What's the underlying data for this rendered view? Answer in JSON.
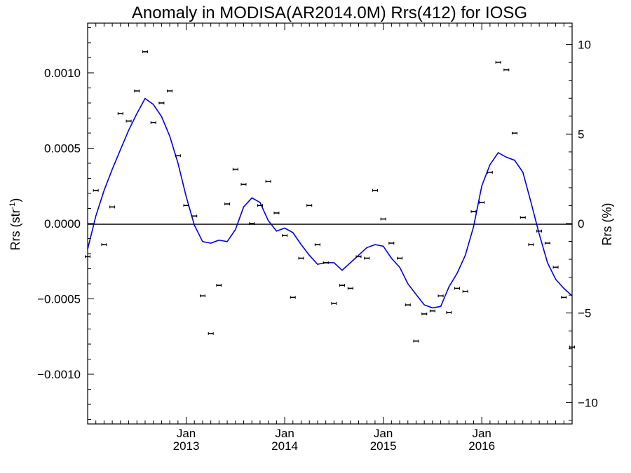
{
  "chart_data": {
    "type": "scatter",
    "title": "Anomaly in MODISA(AR2014.0M) Rrs(412) for IOSG",
    "ylabel_left": "Rrs (str",
    "ylabel_left_sup": "-1",
    "ylabel_left_end": ")",
    "ylabel_right": "Rrs (%)",
    "xlim": [
      2012.0,
      2016.9167
    ],
    "ylim_left": [
      -0.00133,
      0.00133
    ],
    "ylim_right": [
      -11.2,
      11.2
    ],
    "left_ticks": [
      {
        "value": 0.001,
        "label": "0.0010"
      },
      {
        "value": 0.0005,
        "label": "0.0005"
      },
      {
        "value": 0.0,
        "label": "0.0000"
      },
      {
        "value": -0.0005,
        "label": "−0.0005"
      },
      {
        "value": -0.001,
        "label": "−0.0010"
      }
    ],
    "right_ticks": [
      {
        "value": 10,
        "label": "10"
      },
      {
        "value": 5,
        "label": "5"
      },
      {
        "value": 0,
        "label": "0"
      },
      {
        "value": -5,
        "label": "−5"
      },
      {
        "value": -10,
        "label": "−10"
      }
    ],
    "x_ticks": [
      {
        "value": 2013.0,
        "month": "Jan",
        "year": "2013"
      },
      {
        "value": 2014.0,
        "month": "Jan",
        "year": "2014"
      },
      {
        "value": 2015.0,
        "month": "Jan",
        "year": "2015"
      },
      {
        "value": 2016.0,
        "month": "Jan",
        "year": "2016"
      }
    ],
    "zero_line": true,
    "colors": {
      "points": "#000000",
      "smooth": "#0000dd",
      "axes": "#000000"
    },
    "series": [
      {
        "kind": "monthly_anomaly_points",
        "x": [
          2012.0,
          2012.083,
          2012.167,
          2012.25,
          2012.333,
          2012.417,
          2012.5,
          2012.583,
          2012.667,
          2012.75,
          2012.833,
          2012.917,
          2013.0,
          2013.083,
          2013.167,
          2013.25,
          2013.333,
          2013.417,
          2013.5,
          2013.583,
          2013.667,
          2013.75,
          2013.833,
          2013.917,
          2014.0,
          2014.083,
          2014.167,
          2014.25,
          2014.333,
          2014.417,
          2014.5,
          2014.583,
          2014.667,
          2014.75,
          2014.833,
          2014.917,
          2015.0,
          2015.083,
          2015.167,
          2015.25,
          2015.333,
          2015.417,
          2015.5,
          2015.583,
          2015.667,
          2015.75,
          2015.833,
          2015.917,
          2016.0,
          2016.083,
          2016.167,
          2016.25,
          2016.333,
          2016.417,
          2016.5,
          2016.583,
          2016.667,
          2016.75,
          2016.833,
          2016.917
        ],
        "y": [
          -0.00022,
          0.00022,
          -0.00014,
          0.00011,
          0.00073,
          0.00068,
          0.00088,
          0.00114,
          0.00067,
          0.0008,
          0.00088,
          0.00045,
          0.00012,
          5e-05,
          -0.00048,
          -0.00073,
          -0.00041,
          0.00013,
          0.00036,
          0.00026,
          0.0,
          0.00012,
          0.00028,
          7e-05,
          -8e-05,
          -0.00049,
          -0.00023,
          0.00012,
          -0.00014,
          -0.00026,
          -0.00053,
          -0.00041,
          -0.00043,
          -0.00022,
          -0.00023,
          0.00022,
          3e-05,
          -0.00013,
          -0.00023,
          -0.00054,
          -0.00078,
          -0.0006,
          -0.00058,
          -0.00048,
          -0.00059,
          -0.00043,
          -0.00045,
          8e-05,
          0.00014,
          0.00034,
          0.00107,
          0.00102,
          0.0006,
          4e-05,
          -0.00014,
          -5e-05,
          -0.00013,
          -0.00029,
          -0.00049,
          -0.00082
        ]
      },
      {
        "kind": "smoothed_line",
        "x": [
          2012.0,
          2012.083,
          2012.167,
          2012.25,
          2012.333,
          2012.417,
          2012.5,
          2012.583,
          2012.667,
          2012.75,
          2012.833,
          2012.917,
          2013.0,
          2013.083,
          2013.167,
          2013.25,
          2013.333,
          2013.417,
          2013.5,
          2013.583,
          2013.667,
          2013.75,
          2013.833,
          2013.917,
          2014.0,
          2014.083,
          2014.167,
          2014.25,
          2014.333,
          2014.417,
          2014.5,
          2014.583,
          2014.667,
          2014.75,
          2014.833,
          2014.917,
          2015.0,
          2015.083,
          2015.167,
          2015.25,
          2015.333,
          2015.417,
          2015.5,
          2015.583,
          2015.667,
          2015.75,
          2015.833,
          2015.917,
          2016.0,
          2016.083,
          2016.167,
          2016.25,
          2016.333,
          2016.417,
          2016.5,
          2016.583,
          2016.667,
          2016.75,
          2016.833,
          2016.917
        ],
        "y": [
          -0.00017,
          5e-05,
          0.00022,
          0.00036,
          0.00049,
          0.00062,
          0.00073,
          0.00083,
          0.00079,
          0.00071,
          0.00058,
          0.0004,
          0.00018,
          -1e-05,
          -0.00012,
          -0.00013,
          -0.00011,
          -0.00012,
          -4e-05,
          0.00011,
          0.00017,
          0.00014,
          2e-05,
          -5e-05,
          -3e-05,
          -6e-05,
          -0.00014,
          -0.00021,
          -0.00027,
          -0.00026,
          -0.00026,
          -0.00031,
          -0.00026,
          -0.00021,
          -0.00016,
          -0.00014,
          -0.00015,
          -0.00023,
          -0.00029,
          -0.0004,
          -0.00047,
          -0.00054,
          -0.00056,
          -0.00055,
          -0.00042,
          -0.00033,
          -0.00021,
          -2e-05,
          0.00025,
          0.00039,
          0.00047,
          0.00044,
          0.00042,
          0.00034,
          0.00014,
          -7e-05,
          -0.00026,
          -0.00037,
          -0.00043,
          -0.00048
        ]
      }
    ]
  }
}
